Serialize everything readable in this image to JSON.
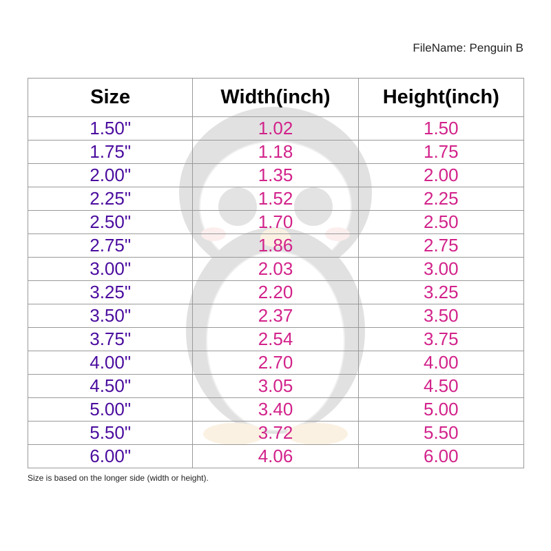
{
  "filename": "FileName: Penguin B",
  "watermark_icon": "penguin-illustration",
  "colors": {
    "size": "#4a0c9e",
    "values": "#d2228a"
  },
  "table": {
    "headers": [
      "Size",
      "Width(inch)",
      "Height(inch)"
    ],
    "rows": [
      [
        "1.50\"",
        "1.02",
        "1.50"
      ],
      [
        "1.75\"",
        "1.18",
        "1.75"
      ],
      [
        "2.00\"",
        "1.35",
        "2.00"
      ],
      [
        "2.25\"",
        "1.52",
        "2.25"
      ],
      [
        "2.50\"",
        "1.70",
        "2.50"
      ],
      [
        "2.75\"",
        "1.86",
        "2.75"
      ],
      [
        "3.00\"",
        "2.03",
        "3.00"
      ],
      [
        "3.25\"",
        "2.20",
        "3.25"
      ],
      [
        "3.50\"",
        "2.37",
        "3.50"
      ],
      [
        "3.75\"",
        "2.54",
        "3.75"
      ],
      [
        "4.00\"",
        "2.70",
        "4.00"
      ],
      [
        "4.50\"",
        "3.05",
        "4.50"
      ],
      [
        "5.00\"",
        "3.40",
        "5.00"
      ],
      [
        "5.50\"",
        "3.72",
        "5.50"
      ],
      [
        "6.00\"",
        "4.06",
        "6.00"
      ]
    ]
  },
  "note": "Size is based on the longer side (width or height)."
}
